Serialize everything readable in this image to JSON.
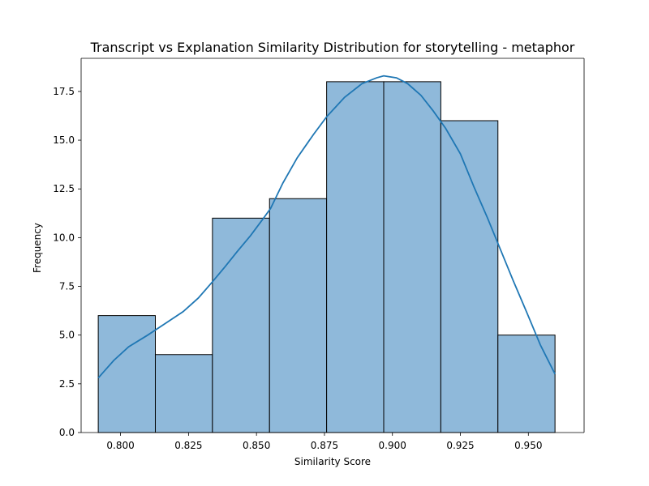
{
  "chart_data": {
    "type": "bar",
    "title": "Transcript vs Explanation Similarity Distribution for storytelling - metaphor",
    "xlabel": "Similarity Score",
    "ylabel": "Frequency",
    "xlim": [
      0.7855,
      0.9705
    ],
    "ylim": [
      0,
      19.2
    ],
    "x_ticks": [
      "0.800",
      "0.825",
      "0.850",
      "0.875",
      "0.900",
      "0.925",
      "0.950"
    ],
    "y_ticks": [
      "0.0",
      "2.5",
      "5.0",
      "7.5",
      "10.0",
      "12.5",
      "15.0",
      "17.5"
    ],
    "bins": [
      {
        "x0": 0.7918,
        "x1": 0.8128,
        "count": 6
      },
      {
        "x0": 0.8128,
        "x1": 0.8338,
        "count": 4
      },
      {
        "x0": 0.8338,
        "x1": 0.8548,
        "count": 11
      },
      {
        "x0": 0.8548,
        "x1": 0.8758,
        "count": 12
      },
      {
        "x0": 0.8758,
        "x1": 0.8968,
        "count": 18
      },
      {
        "x0": 0.8968,
        "x1": 0.9178,
        "count": 18
      },
      {
        "x0": 0.9178,
        "x1": 0.9388,
        "count": 16
      },
      {
        "x0": 0.9388,
        "x1": 0.9598,
        "count": 5
      }
    ],
    "kde": {
      "x": [
        0.7918,
        0.7975,
        0.803,
        0.81,
        0.8165,
        0.823,
        0.8286,
        0.8336,
        0.8384,
        0.843,
        0.8478,
        0.8526,
        0.8552,
        0.8597,
        0.865,
        0.871,
        0.8758,
        0.8824,
        0.8888,
        0.8942,
        0.8968,
        0.9015,
        0.9056,
        0.9105,
        0.915,
        0.9196,
        0.925,
        0.93,
        0.935,
        0.9397,
        0.9444,
        0.9493,
        0.9544,
        0.9598
      ],
      "y": [
        2.8,
        3.7,
        4.4,
        5.0,
        5.6,
        6.2,
        6.9,
        7.7,
        8.5,
        9.3,
        10.1,
        11.0,
        11.5,
        12.8,
        14.1,
        15.3,
        16.2,
        17.2,
        17.9,
        18.2,
        18.3,
        18.2,
        17.9,
        17.3,
        16.5,
        15.6,
        14.3,
        12.6,
        11.0,
        9.4,
        7.8,
        6.2,
        4.5,
        3.0
      ]
    },
    "grid": false,
    "colors": {
      "bar_fill": "#8fb9da",
      "bar_stroke": "#000000",
      "kde_line": "#1f77b4",
      "axes": "#000000"
    }
  }
}
